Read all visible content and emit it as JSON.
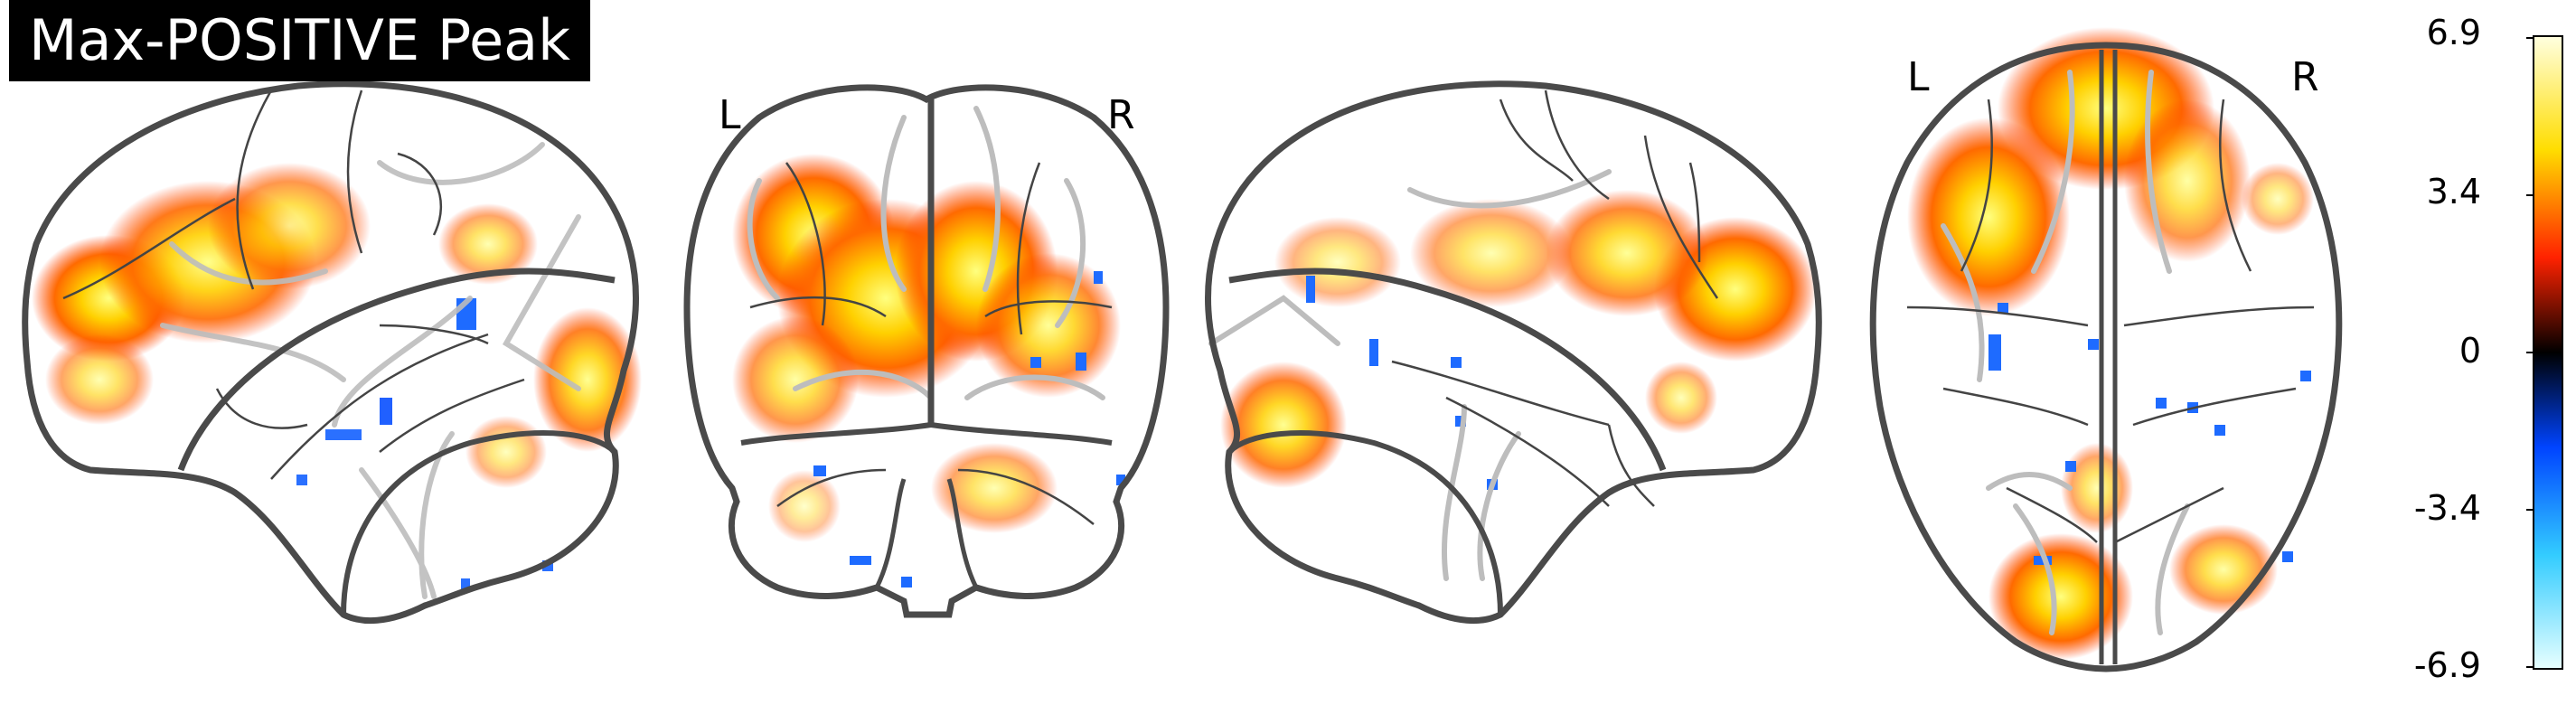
{
  "title": "Max-POSITIVE Peak",
  "views": [
    {
      "name": "sagittal-left"
    },
    {
      "name": "coronal",
      "left_label": "L",
      "right_label": "R"
    },
    {
      "name": "sagittal-right"
    },
    {
      "name": "axial",
      "left_label": "L",
      "right_label": "R"
    }
  ],
  "colorbar": {
    "ticks": [
      "6.9",
      "3.4",
      "0",
      "-3.4",
      "-6.9"
    ],
    "range": [
      -6.9,
      6.9
    ],
    "colors": {
      "top": "#ffffe0",
      "upper": "#ffdd00",
      "mid_high": "#ff2200",
      "zero": "#000000",
      "mid_low": "#0044ff",
      "bottom": "#e8ffff"
    }
  }
}
